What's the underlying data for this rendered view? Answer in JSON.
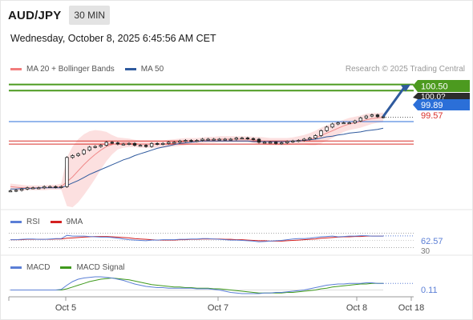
{
  "header": {
    "symbol": "AUD/JPY",
    "timeframe": "30 MIN",
    "datetime": "Wednesday, October 8, 2025 6:45:56 AM CET"
  },
  "price_panel": {
    "legend": [
      {
        "label": "MA 20 + Bollinger Bands",
        "color": "#f27c7c"
      },
      {
        "label": "MA 50",
        "color": "#2f5a9e"
      }
    ],
    "credit": "Research © 2025 Trading Central",
    "price_tags": [
      {
        "label": "100.50",
        "bg": "#4c9a1f"
      },
      {
        "label": "100.0?",
        "bg": "#2c2c2c"
      },
      {
        "label": "99.89",
        "bg": "#2b6fd8"
      },
      {
        "label": "99.57",
        "color": "#d9312b"
      }
    ]
  },
  "rsi_panel": {
    "legend": [
      {
        "label": "RSI",
        "color": "#5b7fd6"
      },
      {
        "label": "9MA",
        "color": "#d42020"
      }
    ],
    "value_label": "62.57",
    "level_label": "30"
  },
  "macd_panel": {
    "legend": [
      {
        "label": "MACD",
        "color": "#5b7fd6"
      },
      {
        "label": "MACD Signal",
        "color": "#3f9a1c"
      }
    ],
    "value_label": "0.11"
  },
  "x_axis": {
    "labels": [
      "Oct 5",
      "Oct 7",
      "Oct 8",
      "Oct 18"
    ]
  },
  "chart_data": {
    "type": "line",
    "title": "AUD/JPY",
    "x_labels": [
      "Oct 5",
      "Oct 7",
      "Oct 8",
      "Oct 18"
    ],
    "price": {
      "close_approx": [
        98.75,
        98.76,
        98.78,
        98.8,
        98.8,
        98.8,
        98.82,
        98.82,
        98.81,
        98.82,
        99.3,
        99.33,
        99.36,
        99.42,
        99.47,
        99.48,
        99.5,
        99.55,
        99.54,
        99.52,
        99.52,
        99.53,
        99.5,
        99.5,
        99.48,
        99.53,
        99.52,
        99.53,
        99.55,
        99.55,
        99.57,
        99.58,
        99.57,
        99.58,
        99.6,
        99.6,
        99.6,
        99.6,
        99.6,
        99.6,
        99.62,
        99.62,
        99.61,
        99.6,
        99.55,
        99.55,
        99.55,
        99.53,
        99.54,
        99.56,
        99.57,
        99.58,
        99.6,
        99.62,
        99.66,
        99.74,
        99.8,
        99.85,
        99.87,
        99.87,
        99.87,
        99.9,
        99.95,
        99.98,
        100.0,
        99.97,
        99.96
      ],
      "ma20_approx": [
        98.82,
        98.81,
        98.8,
        98.8,
        98.8,
        98.8,
        98.8,
        98.81,
        98.81,
        98.82,
        98.9,
        98.98,
        99.08,
        99.18,
        99.27,
        99.35,
        99.42,
        99.48,
        99.51,
        99.53,
        99.54,
        99.54,
        99.53,
        99.52,
        99.52,
        99.52,
        99.52,
        99.52,
        99.53,
        99.54,
        99.55,
        99.56,
        99.57,
        99.57,
        99.58,
        99.59,
        99.59,
        99.6,
        99.6,
        99.6,
        99.6,
        99.6,
        99.6,
        99.59,
        99.58,
        99.57,
        99.56,
        99.56,
        99.56,
        99.56,
        99.57,
        99.58,
        99.59,
        99.6,
        99.62,
        99.66,
        99.7,
        99.74,
        99.78,
        99.82,
        99.85,
        99.87,
        99.89,
        99.92,
        99.94,
        99.95,
        99.96
      ],
      "ma50_approx": [
        98.78,
        98.78,
        98.79,
        98.79,
        98.79,
        98.8,
        98.8,
        98.8,
        98.8,
        98.8,
        98.84,
        98.88,
        98.92,
        98.97,
        99.02,
        99.06,
        99.1,
        99.14,
        99.18,
        99.22,
        99.26,
        99.29,
        99.33,
        99.36,
        99.39,
        99.42,
        99.45,
        99.47,
        99.49,
        99.51,
        99.53,
        99.54,
        99.55,
        99.56,
        99.57,
        99.57,
        99.57,
        99.57,
        99.57,
        99.57,
        99.57,
        99.57,
        99.57,
        99.56,
        99.56,
        99.56,
        99.56,
        99.56,
        99.56,
        99.56,
        99.57,
        99.57,
        99.58,
        99.59,
        99.6,
        99.62,
        99.64,
        99.65,
        99.67,
        99.68,
        99.7,
        99.71,
        99.72,
        99.74,
        99.75,
        99.76,
        99.78
      ],
      "bb_width_approx": [
        0.05,
        0.05,
        0.05,
        0.04,
        0.04,
        0.04,
        0.04,
        0.04,
        0.04,
        0.05,
        0.4,
        0.5,
        0.52,
        0.5,
        0.46,
        0.4,
        0.32,
        0.24,
        0.16,
        0.1,
        0.08,
        0.07,
        0.06,
        0.06,
        0.06,
        0.06,
        0.06,
        0.06,
        0.06,
        0.06,
        0.06,
        0.06,
        0.05,
        0.05,
        0.05,
        0.05,
        0.05,
        0.05,
        0.05,
        0.05,
        0.05,
        0.05,
        0.05,
        0.05,
        0.06,
        0.06,
        0.06,
        0.06,
        0.06,
        0.06,
        0.06,
        0.07,
        0.08,
        0.1,
        0.12,
        0.13,
        0.13,
        0.12,
        0.11,
        0.1,
        0.1,
        0.1,
        0.1,
        0.1,
        0.09,
        0.08,
        0.08
      ],
      "levels": [
        {
          "value": 100.5,
          "color": "#4c9a1f"
        },
        {
          "value": 100.4,
          "color": "#4c9a1f"
        },
        {
          "value": 99.89,
          "color": "#2b6fd8"
        },
        {
          "value": 99.57,
          "color": "#d9312b"
        },
        {
          "value": 99.52,
          "color": "#d9312b"
        }
      ],
      "forecast_target": 100.5,
      "ylim": [
        98.6,
        100.6
      ]
    },
    "rsi": {
      "values_approx": [
        52,
        52,
        53,
        54,
        54,
        53,
        53,
        54,
        55,
        55,
        64,
        62,
        62,
        62,
        61,
        60,
        59,
        59,
        58,
        56,
        54,
        52,
        51,
        50,
        49,
        51,
        51,
        52,
        52,
        52,
        53,
        53,
        54,
        54,
        55,
        55,
        54,
        53,
        52,
        51,
        51,
        50,
        49,
        48,
        46,
        47,
        48,
        49,
        50,
        52,
        54,
        55,
        55,
        56,
        58,
        60,
        61,
        62,
        60,
        61,
        62,
        62,
        63,
        63,
        62,
        62,
        62
      ],
      "ma9_approx": [
        52,
        52,
        52,
        53,
        53,
        53,
        53,
        53,
        54,
        54,
        56,
        57,
        58,
        59,
        60,
        61,
        61,
        61,
        60,
        59,
        58,
        57,
        55,
        54,
        53,
        52,
        51,
        51,
        51,
        51,
        52,
        52,
        53,
        53,
        54,
        54,
        54,
        54,
        53,
        53,
        52,
        52,
        51,
        50,
        49,
        49,
        48,
        48,
        48,
        49,
        50,
        51,
        52,
        53,
        54,
        56,
        57,
        58,
        59,
        60,
        60,
        61,
        61,
        62,
        62,
        62,
        62
      ],
      "last": 62.57,
      "levels": [
        70,
        30
      ],
      "ylim": [
        20,
        80
      ]
    },
    "macd": {
      "macd_approx": [
        0.0,
        0.0,
        0.0,
        0.0,
        0.0,
        0.0,
        0.0,
        0.0,
        0.0,
        0.01,
        0.08,
        0.14,
        0.18,
        0.2,
        0.21,
        0.22,
        0.22,
        0.21,
        0.2,
        0.18,
        0.16,
        0.13,
        0.1,
        0.08,
        0.06,
        0.05,
        0.04,
        0.04,
        0.03,
        0.03,
        0.03,
        0.03,
        0.03,
        0.02,
        0.02,
        0.02,
        0.01,
        0.0,
        -0.02,
        -0.04,
        -0.05,
        -0.06,
        -0.06,
        -0.06,
        -0.06,
        -0.05,
        -0.05,
        -0.04,
        -0.04,
        -0.03,
        -0.02,
        -0.01,
        0.0,
        0.02,
        0.04,
        0.06,
        0.08,
        0.09,
        0.1,
        0.1,
        0.11,
        0.11,
        0.11,
        0.12,
        0.12,
        0.11,
        0.11
      ],
      "signal_approx": [
        0.0,
        0.0,
        0.0,
        0.0,
        0.0,
        0.0,
        0.0,
        0.0,
        0.0,
        0.0,
        0.02,
        0.05,
        0.08,
        0.11,
        0.14,
        0.16,
        0.18,
        0.19,
        0.2,
        0.19,
        0.18,
        0.17,
        0.15,
        0.13,
        0.11,
        0.09,
        0.08,
        0.07,
        0.06,
        0.05,
        0.05,
        0.04,
        0.04,
        0.03,
        0.03,
        0.03,
        0.02,
        0.02,
        0.01,
        0.0,
        -0.01,
        -0.02,
        -0.03,
        -0.04,
        -0.05,
        -0.05,
        -0.05,
        -0.05,
        -0.05,
        -0.04,
        -0.04,
        -0.03,
        -0.02,
        -0.01,
        0.0,
        0.02,
        0.03,
        0.05,
        0.06,
        0.07,
        0.08,
        0.09,
        0.1,
        0.1,
        0.11,
        0.11,
        0.11
      ],
      "last": 0.11,
      "ylim": [
        -0.1,
        0.3
      ]
    }
  }
}
